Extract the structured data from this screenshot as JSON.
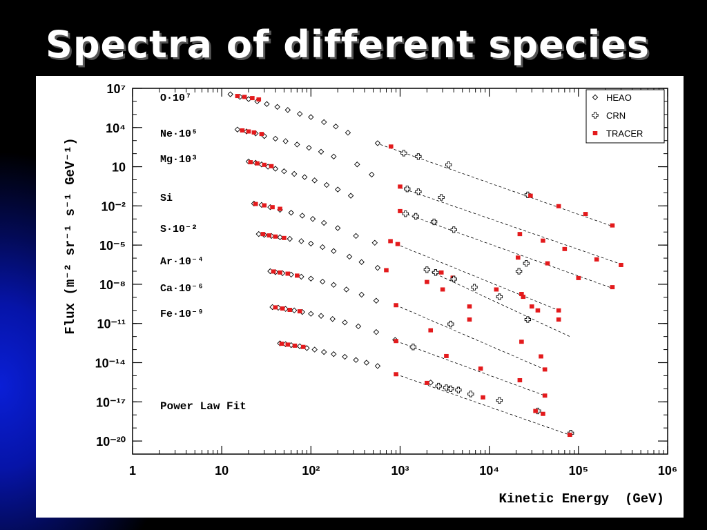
{
  "slide": {
    "title": "Spectra of different species"
  },
  "chart_data": {
    "type": "scatter",
    "x_scale": "log",
    "y_scale": "log",
    "xlim": [
      1,
      1000000
    ],
    "ylim": [
      1e-21,
      10000000.0
    ],
    "grid": false,
    "legend_position": "top-right",
    "xlabel": "Kinetic Energy  (GeV)",
    "ylabel": "Flux (m⁻² sr⁻¹ s⁻¹ GeV⁻¹)",
    "x_ticks": [
      {
        "value": 1,
        "label": "1"
      },
      {
        "value": 10,
        "label": "10"
      },
      {
        "value": 100,
        "label": "10²"
      },
      {
        "value": 1000,
        "label": "10³"
      },
      {
        "value": 10000,
        "label": "10⁴"
      },
      {
        "value": 100000,
        "label": "10⁵"
      },
      {
        "value": 1000000,
        "label": "10⁶"
      }
    ],
    "y_ticks": [
      {
        "value": 10000000.0,
        "label": "10⁷"
      },
      {
        "value": 10000.0,
        "label": "10⁴"
      },
      {
        "value": 10,
        "label": "10"
      },
      {
        "value": 0.01,
        "label": "10⁻²"
      },
      {
        "value": 1e-05,
        "label": "10⁻⁵"
      },
      {
        "value": 1e-08,
        "label": "10⁻⁸"
      },
      {
        "value": 1e-11,
        "label": "10⁻¹¹"
      },
      {
        "value": 1e-14,
        "label": "10⁻¹⁴"
      },
      {
        "value": 1e-17,
        "label": "10⁻¹⁷"
      },
      {
        "value": 1e-20,
        "label": "10⁻²⁰"
      }
    ],
    "annotation": "Power Law Fit",
    "legend": [
      {
        "name": "HEAO",
        "marker": "diamond-open",
        "color": "#000000"
      },
      {
        "name": "CRN",
        "marker": "cross-open",
        "color": "#000000"
      },
      {
        "name": "TRACER",
        "marker": "square-filled",
        "color": "#e31a1c"
      }
    ],
    "species": [
      {
        "label": "O·10⁷",
        "HEAO": [
          [
            12.5,
            3500000.0
          ],
          [
            16,
            2200000.0
          ],
          [
            20,
            1500000.0
          ],
          [
            25,
            1000000.0
          ],
          [
            32,
            630000.0
          ],
          [
            42,
            380000.0
          ],
          [
            55,
            220000.0
          ],
          [
            75,
            110000.0
          ],
          [
            100,
            63000.0
          ],
          [
            140,
            26000.0
          ],
          [
            190,
            12000.0
          ],
          [
            260,
            4000.0
          ],
          [
            560,
            630
          ]
        ],
        "CRN": [
          [
            1100,
            110
          ],
          [
            1600,
            60
          ],
          [
            3500,
            14
          ],
          [
            27000,
            0.07
          ]
        ],
        "TRACER": [
          [
            15,
            2600000.0
          ],
          [
            18,
            2200000.0
          ],
          [
            22,
            1800000.0
          ],
          [
            26,
            1400000.0
          ],
          [
            790,
            350
          ],
          [
            29000,
            0.06
          ],
          [
            60000,
            0.0095
          ],
          [
            120000,
            0.0024
          ],
          [
            240000,
            0.00032
          ]
        ],
        "fit": [
          [
            600,
            500
          ],
          [
            250000,
            0.00025
          ]
        ]
      },
      {
        "label": "Ne·10⁵",
        "HEAO": [
          [
            15,
            7000.0
          ],
          [
            19,
            5000.0
          ],
          [
            24,
            3500.0
          ],
          [
            30,
            2200.0
          ],
          [
            40,
            1400.0
          ],
          [
            52,
            900
          ],
          [
            70,
            500
          ],
          [
            95,
            280
          ],
          [
            130,
            140
          ],
          [
            180,
            60
          ],
          [
            330,
            15
          ],
          [
            480,
            2.5
          ]
        ],
        "CRN": [
          [
            1200,
            0.2
          ],
          [
            1600,
            0.12
          ],
          [
            2900,
            0.045
          ]
        ],
        "TRACER": [
          [
            17,
            6000.0
          ],
          [
            20,
            5000.0
          ],
          [
            23,
            4200.0
          ],
          [
            28,
            3200.0
          ],
          [
            1000,
            0.3
          ],
          [
            22000,
            7e-05
          ],
          [
            40000,
            2.2e-05
          ],
          [
            70000,
            5e-06
          ],
          [
            160000,
            8e-07
          ],
          [
            300000,
            3e-07
          ]
        ],
        "fit": [
          [
            1000,
            0.25
          ],
          [
            320000,
            3e-07
          ]
        ]
      },
      {
        "label": "Mg·10³",
        "HEAO": [
          [
            20,
            25
          ],
          [
            24,
            20
          ],
          [
            28,
            15
          ],
          [
            33,
            10
          ],
          [
            40,
            7
          ],
          [
            50,
            4.5
          ],
          [
            65,
            2.8
          ],
          [
            85,
            1.6
          ],
          [
            110,
            0.9
          ],
          [
            150,
            0.4
          ],
          [
            200,
            0.18
          ],
          [
            280,
            0.06
          ]
        ],
        "CRN": [
          [
            1150,
            0.0025
          ],
          [
            1500,
            0.0016
          ],
          [
            2400,
            0.0006
          ],
          [
            4000,
            0.00015
          ]
        ],
        "TRACER": [
          [
            21,
            22
          ],
          [
            25,
            18
          ],
          [
            30,
            14
          ],
          [
            36,
            11
          ],
          [
            1000,
            0.004
          ],
          [
            21000,
            1.1e-06
          ],
          [
            45000,
            4e-07
          ],
          [
            100000,
            3e-08
          ],
          [
            240000,
            6e-09
          ]
        ],
        "fit": [
          [
            950,
            0.004
          ],
          [
            240000,
            5e-09
          ]
        ]
      },
      {
        "label": "Si",
        "HEAO": [
          [
            23,
            0.015
          ],
          [
            28,
            0.012
          ],
          [
            35,
            0.008
          ],
          [
            45,
            0.005
          ],
          [
            60,
            0.003
          ],
          [
            80,
            0.0018
          ],
          [
            105,
            0.001
          ],
          [
            140,
            0.0005
          ],
          [
            200,
            0.0002
          ],
          [
            320,
            5e-05
          ],
          [
            520,
            1.5e-05
          ]
        ],
        "CRN": [
          [
            21500,
            1e-07
          ],
          [
            26000,
            4e-07
          ]
        ],
        "TRACER": [
          [
            24,
            0.014
          ],
          [
            30,
            0.011
          ],
          [
            37,
            0.008
          ],
          [
            45,
            0.006
          ],
          [
            780,
            2e-05
          ],
          [
            940,
            1.2e-05
          ],
          [
            2900,
            8e-08
          ],
          [
            3900,
            3.2e-08
          ],
          [
            12000,
            4e-09
          ],
          [
            23000,
            1.8e-09
          ],
          [
            24000,
            1.1e-09
          ],
          [
            35000,
            1e-10
          ],
          [
            60000,
            1e-10
          ]
        ],
        "fit": [
          [
            900,
            1.2e-05
          ],
          [
            60000,
            1e-10
          ]
        ]
      },
      {
        "label": "S·10⁻²",
        "HEAO": [
          [
            26,
            7e-05
          ],
          [
            30,
            6e-05
          ],
          [
            36,
            5e-05
          ],
          [
            45,
            4e-05
          ],
          [
            58,
            3e-05
          ],
          [
            78,
            2e-05
          ],
          [
            100,
            1.3e-05
          ],
          [
            135,
            7e-06
          ],
          [
            180,
            3.5e-06
          ],
          [
            270,
            1.3e-06
          ],
          [
            370,
            5e-07
          ],
          [
            560,
            1.8e-07
          ]
        ],
        "CRN": [
          [
            2000,
            1.3e-07
          ],
          [
            2500,
            8e-08
          ],
          [
            4000,
            2.5e-08
          ],
          [
            6800,
            6e-09
          ],
          [
            13000,
            1.1e-09
          ]
        ],
        "TRACER": [
          [
            29,
            7e-05
          ],
          [
            34,
            5.5e-05
          ],
          [
            40,
            4.5e-05
          ],
          [
            50,
            3.5e-05
          ],
          [
            700,
            1.2e-07
          ],
          [
            2000,
            1.5e-08
          ],
          [
            3000,
            4e-09
          ],
          [
            6000,
            2e-10
          ],
          [
            30000,
            2e-10
          ],
          [
            60000,
            2e-11
          ]
        ],
        "fit": [
          [
            2000,
            1.3e-07
          ],
          [
            80000,
            1e-12
          ]
        ]
      },
      {
        "label": "Ar·10⁻⁴",
        "HEAO": [
          [
            35,
            1e-07
          ],
          [
            40,
            8.5e-08
          ],
          [
            48,
            7e-08
          ],
          [
            60,
            5.5e-08
          ],
          [
            78,
            3.8e-08
          ],
          [
            100,
            2.7e-08
          ],
          [
            135,
            1.6e-08
          ],
          [
            180,
            9e-09
          ],
          [
            250,
            4e-09
          ],
          [
            370,
            1.6e-09
          ],
          [
            540,
            5.5e-10
          ]
        ],
        "CRN": [
          [
            3700,
            9e-12
          ],
          [
            27000,
            2e-11
          ]
        ],
        "TRACER": [
          [
            38,
            9.5e-08
          ],
          [
            45,
            8e-08
          ],
          [
            55,
            6.5e-08
          ],
          [
            70,
            4.6e-08
          ],
          [
            900,
            2.5e-10
          ],
          [
            2200,
            3e-12
          ],
          [
            6000,
            2e-11
          ],
          [
            23000,
            4e-13
          ],
          [
            38000,
            3e-14
          ],
          [
            42000,
            3e-15
          ]
        ],
        "fit": [
          [
            900,
            2.5e-10
          ],
          [
            42000,
            3e-15
          ]
        ]
      },
      {
        "label": "Ca·10⁻⁶",
        "HEAO": [
          [
            37,
            1.8e-10
          ],
          [
            43,
            1.6e-10
          ],
          [
            52,
            1.3e-10
          ],
          [
            65,
            1e-10
          ],
          [
            80,
            7.5e-11
          ],
          [
            100,
            5.5e-11
          ],
          [
            130,
            3.8e-11
          ],
          [
            175,
            2.2e-11
          ],
          [
            240,
            1.2e-11
          ],
          [
            340,
            6e-12
          ],
          [
            540,
            2.2e-12
          ],
          [
            880,
            5.5e-13
          ]
        ],
        "CRN": [
          [
            1400,
            1.6e-13
          ]
        ],
        "TRACER": [
          [
            40,
            1.7e-10
          ],
          [
            48,
            1.4e-10
          ],
          [
            58,
            1.1e-10
          ],
          [
            75,
            8.5e-11
          ],
          [
            900,
            4.5e-13
          ],
          [
            3300,
            3.2e-14
          ],
          [
            8000,
            3.5e-15
          ],
          [
            22000,
            4.5e-16
          ],
          [
            42000,
            3e-17
          ]
        ],
        "fit": [
          [
            900,
            4.5e-13
          ],
          [
            42000,
            3e-17
          ]
        ]
      },
      {
        "label": "Fe·10⁻⁹",
        "HEAO": [
          [
            45,
            3e-13
          ],
          [
            52,
            2.6e-13
          ],
          [
            60,
            2.2e-13
          ],
          [
            75,
            1.8e-13
          ],
          [
            90,
            1.3e-13
          ],
          [
            110,
            1e-13
          ],
          [
            140,
            6.5e-14
          ],
          [
            180,
            4.5e-14
          ],
          [
            240,
            2.8e-14
          ],
          [
            320,
            1.6e-14
          ],
          [
            420,
            1e-14
          ],
          [
            560,
            5.5e-15
          ],
          [
            2200,
            3e-16
          ]
        ],
        "CRN": [
          [
            2700,
            1.6e-16
          ],
          [
            3300,
            1.2e-16
          ],
          [
            3700,
            1e-16
          ],
          [
            4500,
            8e-17
          ],
          [
            6200,
            4e-17
          ],
          [
            13000,
            1.3e-17
          ],
          [
            35000,
            2e-18
          ],
          [
            82000,
            4e-20
          ]
        ],
        "TRACER": [
          [
            47,
            2.8e-13
          ],
          [
            55,
            2.4e-13
          ],
          [
            66,
            2e-13
          ],
          [
            82,
            1.6e-13
          ],
          [
            900,
            1.3e-15
          ],
          [
            2000,
            2.8e-16
          ],
          [
            8500,
            2.2e-17
          ],
          [
            33000,
            2e-18
          ],
          [
            40000,
            1.2e-18
          ],
          [
            80000,
            3e-20
          ]
        ],
        "fit": [
          [
            900,
            1.3e-15
          ],
          [
            85000,
            2.5e-20
          ]
        ]
      }
    ]
  }
}
